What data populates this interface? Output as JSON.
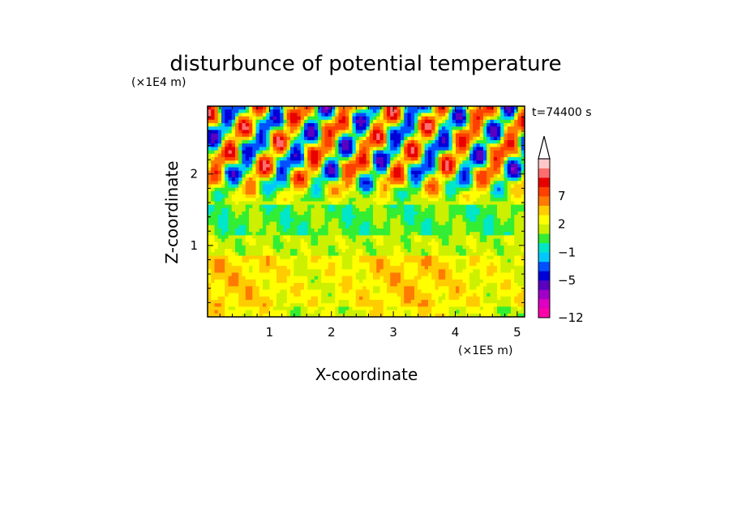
{
  "chart_data": {
    "type": "heatmap",
    "title": "disturbunce of potential temperature",
    "xlabel": "X-coordinate",
    "ylabel": "Z-coordinate",
    "x_unit": "(×1E5 m)",
    "y_unit": "(×1E4 m)",
    "time_label": "t=74400 s",
    "x_range": [
      0,
      5.12
    ],
    "y_range": [
      0,
      2.95
    ],
    "x_ticks": [
      "1",
      "2",
      "3",
      "4",
      "5"
    ],
    "y_ticks": [
      "1",
      "2"
    ],
    "colorbar": {
      "levels": [
        -12,
        -11,
        -9,
        -7,
        -5,
        -3,
        -2,
        -1,
        0,
        1,
        2,
        3,
        5,
        7,
        9,
        11
      ],
      "colors": [
        "#ff00aa",
        "#e000c0",
        "#a000c8",
        "#5a00c0",
        "#0000d8",
        "#0050ff",
        "#00c8ff",
        "#00e6c8",
        "#33ee33",
        "#ccf000",
        "#ffff00",
        "#ffcc00",
        "#ff7a00",
        "#ff4000",
        "#e80000",
        "#ff6e6e",
        "#ffc8c8"
      ],
      "labeled_ticks": [
        "7",
        "2",
        "−1",
        "−5",
        "−12"
      ],
      "extend": "max"
    },
    "field_description": "layered temperature perturbation: mostly +1..+3 in lower layer (0-0.8E4 m), -1..+1 band near 1-1.5E4 m, strong alternating wave pattern (-7..+7) in upper layer 1.6-2.9E4 m"
  }
}
